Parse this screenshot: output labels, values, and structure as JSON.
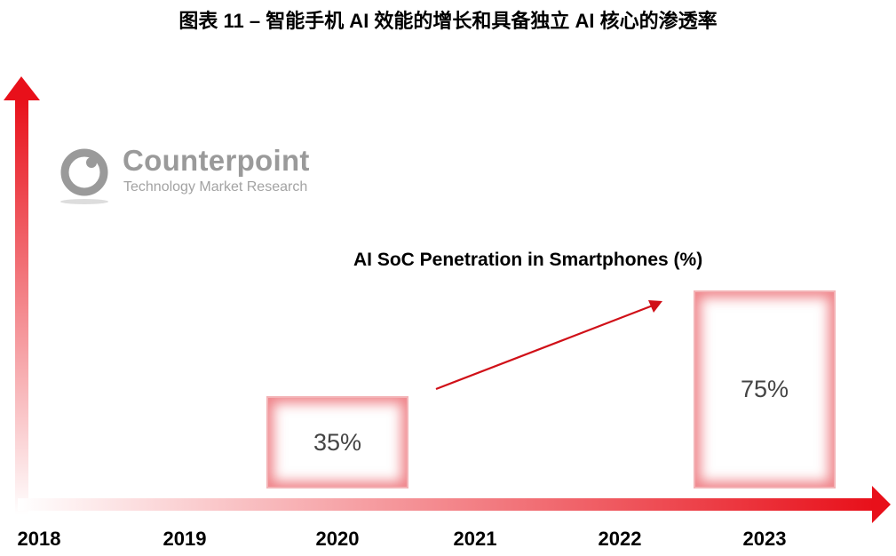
{
  "title": "图表 11 – 智能手机 AI 效能的增长和具备独立 AI 核心的渗透率",
  "logo": {
    "name": "Counterpoint",
    "tagline": "Technology Market Research"
  },
  "chart_data": {
    "type": "bar",
    "title": "AI SoC Penetration in Smartphones (%)",
    "categories": [
      "2018",
      "2019",
      "2020",
      "2021",
      "2022",
      "2023"
    ],
    "values": [
      null,
      null,
      35,
      null,
      null,
      75
    ],
    "data_labels": [
      "",
      "",
      "35%",
      "",
      "",
      "75%"
    ],
    "xlabel": "",
    "ylabel": "",
    "grid": false,
    "legend": "none",
    "accent_color": "#e8101a",
    "trend_arrow": {
      "from": "2020",
      "to": "2023"
    }
  }
}
